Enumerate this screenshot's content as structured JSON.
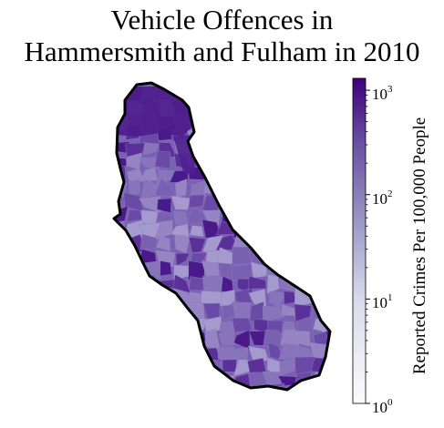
{
  "title": {
    "line1": "Vehicle Offences in",
    "line2": "Hammersmith and Fulham in 2010"
  },
  "map": {
    "region": "Hammersmith and Fulham",
    "border_color": "#000000",
    "fill_palette": [
      "#4a1a8a",
      "#5b3199",
      "#6a4aa6",
      "#7a60b1",
      "#8774bb",
      "#9585c3",
      "#a49acd"
    ],
    "dark_zone_color": "#4d1c8c"
  },
  "colorbar": {
    "label": "Reported Crimes Per 100,000 People",
    "scale": "log",
    "range": [
      1,
      1300
    ],
    "color_low": "#ffffff",
    "color_high": "#3f007d",
    "ticks": [
      {
        "base": "10",
        "exp": "0",
        "value": 1
      },
      {
        "base": "10",
        "exp": "1",
        "value": 10
      },
      {
        "base": "10",
        "exp": "2",
        "value": 100
      },
      {
        "base": "10",
        "exp": "3",
        "value": 1000
      }
    ]
  }
}
